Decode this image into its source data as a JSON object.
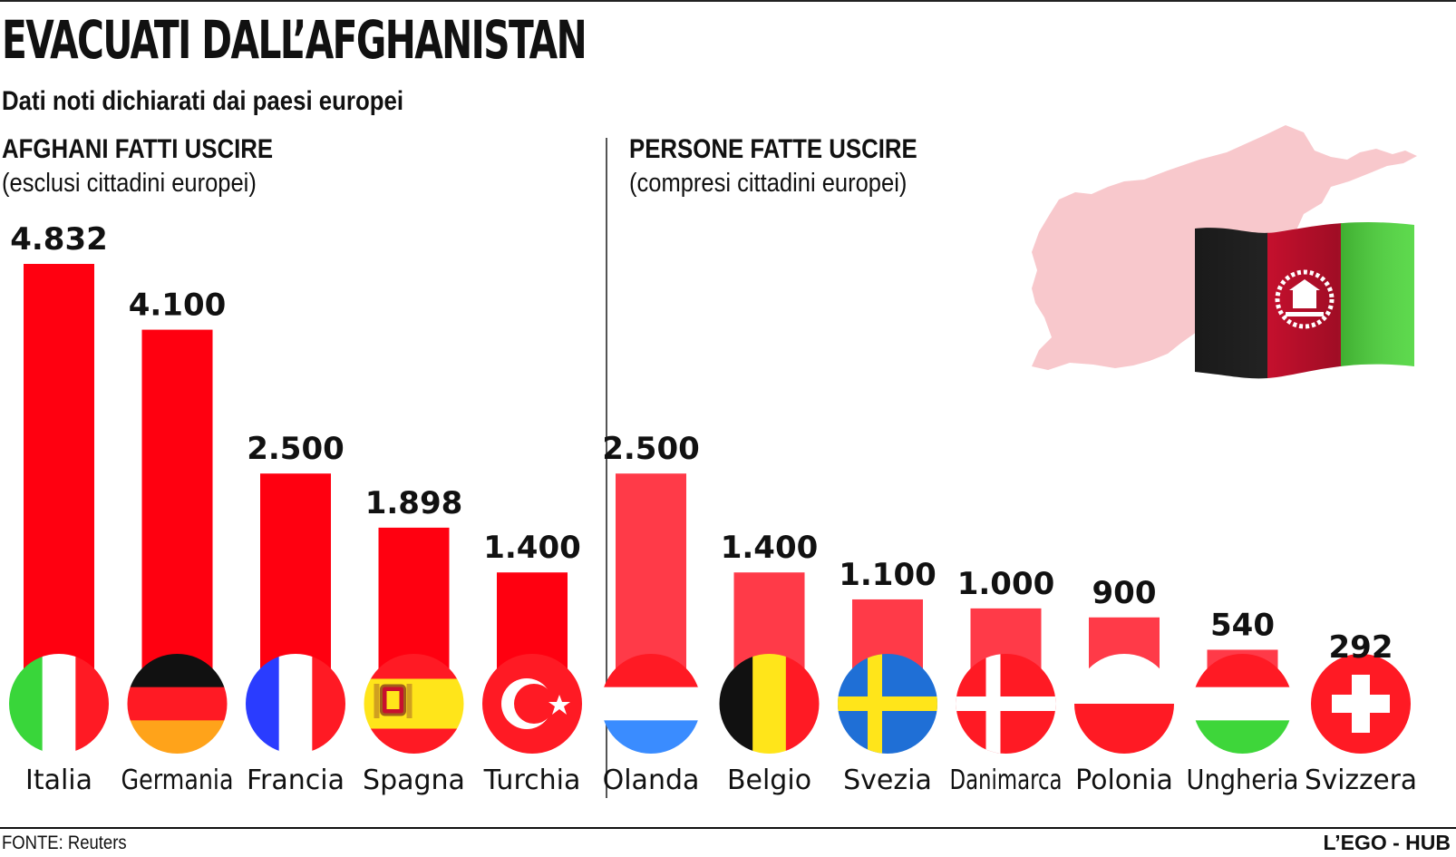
{
  "title": "EVACUATI DALL’AFGHANISTAN",
  "subtitle": "Dati noti dichiarati dai paesi europei",
  "left_panel": {
    "heading": "AFGHANI FATTI USCIRE",
    "note": "(esclusi cittadini europei)"
  },
  "right_panel": {
    "heading": "PERSONE FATTE USCIRE",
    "note": "(compresi cittadini europei)"
  },
  "source": "FONTE: Reuters",
  "brand": "L’EGO - HUB",
  "colors": {
    "left_bar": "#ff0010",
    "right_bar": "#ff3a48",
    "map": "#f8c8cc"
  },
  "chart_data": [
    {
      "type": "bar",
      "title": "AFGHANI FATTI USCIRE",
      "subtitle": "(esclusi cittadini europei)",
      "categories": [
        "Italia",
        "Germania",
        "Francia",
        "Spagna",
        "Turchia"
      ],
      "values": [
        4832,
        4100,
        2500,
        1898,
        1400
      ],
      "value_labels": [
        "4.832",
        "4.100",
        "2.500",
        "1.898",
        "1.400"
      ],
      "flag_icons": [
        "italy-flag-icon",
        "germany-flag-icon",
        "france-flag-icon",
        "spain-flag-icon",
        "turkey-flag-icon"
      ],
      "ylim": [
        0,
        4832
      ]
    },
    {
      "type": "bar",
      "title": "PERSONE FATTE USCIRE",
      "subtitle": "(compresi cittadini europei)",
      "categories": [
        "Olanda",
        "Belgio",
        "Svezia",
        "Danimarca",
        "Polonia",
        "Ungheria",
        "Svizzera"
      ],
      "values": [
        2500,
        1400,
        1100,
        1000,
        900,
        540,
        292
      ],
      "value_labels": [
        "2.500",
        "1.400",
        "1.100",
        "1.000",
        "900",
        "540",
        "292"
      ],
      "flag_icons": [
        "netherlands-flag-icon",
        "belgium-flag-icon",
        "sweden-flag-icon",
        "denmark-flag-icon",
        "poland-flag-icon",
        "hungary-flag-icon",
        "switzerland-flag-icon"
      ],
      "ylim": [
        0,
        4832
      ]
    }
  ]
}
